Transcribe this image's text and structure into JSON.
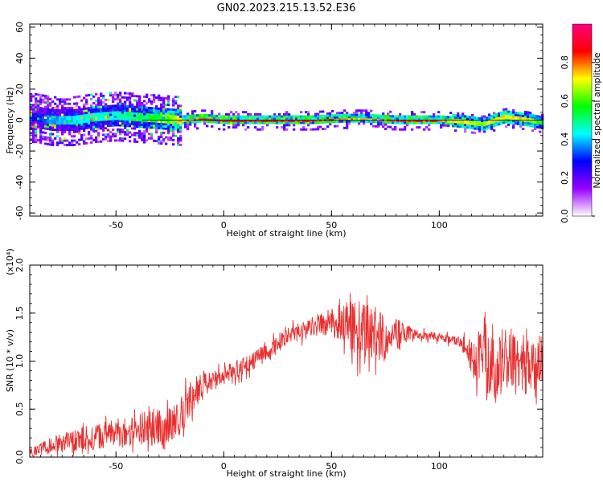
{
  "title": "GN02.2023.215.13.52.E36",
  "chart_data": [
    {
      "type": "heatmap",
      "xlabel": "Height of straight line (km)",
      "ylabel": "Frequency (Hz)",
      "xlim": [
        -90,
        148
      ],
      "ylim": [
        -62,
        62
      ],
      "xticks": [
        -50,
        0,
        50,
        100
      ],
      "yticks": [
        -60,
        -40,
        -20,
        0,
        20,
        40,
        60
      ],
      "colorbar": {
        "label": "Normalized spectral amplitude",
        "range": [
          0,
          1
        ],
        "ticks": [
          "0.0",
          "0.2",
          "0.4",
          "0.6",
          "0.8"
        ],
        "colors": [
          "#ffffff",
          "#9900ff",
          "#0000ff",
          "#00ffff",
          "#00ff00",
          "#ffff00",
          "#ff0000",
          "#ff0080"
        ]
      },
      "ridge": {
        "x": [
          -88,
          -80,
          -70,
          -60,
          -50,
          -40,
          -30,
          -20,
          -10,
          0,
          20,
          40,
          55,
          65,
          80,
          100,
          110,
          120,
          130,
          140,
          148
        ],
        "y": [
          2,
          0,
          0,
          2,
          3,
          2,
          1,
          0,
          1,
          0,
          0,
          0,
          1,
          1,
          0,
          0,
          -1,
          -3,
          2,
          0,
          -2
        ],
        "amp": [
          0.3,
          0.4,
          0.45,
          0.5,
          0.5,
          0.55,
          0.6,
          0.8,
          0.95,
          0.95,
          0.95,
          0.9,
          0.85,
          0.8,
          0.9,
          0.9,
          0.75,
          0.7,
          0.8,
          0.75,
          0.6
        ]
      }
    },
    {
      "type": "line",
      "series": [
        {
          "color": "#e83030"
        }
      ],
      "xlabel": "Height of straight line (km)",
      "ylabel": "SNR (10 * v/v)",
      "y_scale_note": "(x10⁴)",
      "xlim": [
        -90,
        148
      ],
      "ylim": [
        0,
        2.0
      ],
      "xticks": [
        -50,
        0,
        50,
        100
      ],
      "yticks": [
        "0.0",
        "0.5",
        "1.0",
        "1.5",
        "2.0"
      ],
      "envelope": {
        "x": [
          -90,
          -70,
          -50,
          -35,
          -22,
          -16,
          -10,
          0,
          10,
          20,
          30,
          40,
          50,
          60,
          65,
          75,
          85,
          90,
          100,
          110,
          115,
          120,
          125,
          130,
          140,
          148
        ],
        "mean": [
          0.05,
          0.18,
          0.25,
          0.3,
          0.35,
          0.6,
          0.75,
          0.85,
          0.95,
          1.1,
          1.25,
          1.35,
          1.4,
          1.35,
          1.3,
          1.25,
          1.3,
          1.28,
          1.25,
          1.2,
          1.05,
          1.05,
          1.0,
          1.0,
          1.0,
          1.0
        ],
        "noise": [
          0.05,
          0.12,
          0.15,
          0.18,
          0.2,
          0.2,
          0.12,
          0.1,
          0.1,
          0.1,
          0.1,
          0.1,
          0.15,
          0.3,
          0.35,
          0.25,
          0.1,
          0.05,
          0.05,
          0.05,
          0.2,
          0.35,
          0.4,
          0.35,
          0.35,
          0.25
        ]
      }
    }
  ]
}
